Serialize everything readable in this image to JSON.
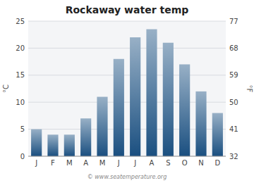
{
  "chart_data": {
    "type": "bar",
    "title": "Rockaway water temp",
    "categories": [
      "J",
      "F",
      "M",
      "A",
      "M",
      "J",
      "J",
      "A",
      "S",
      "O",
      "N",
      "D"
    ],
    "values": [
      5.0,
      4.0,
      4.0,
      7.0,
      11.0,
      18.0,
      22.0,
      23.5,
      21.0,
      17.0,
      12.0,
      8.0
    ],
    "color": "#1a4f80",
    "ylabel": "°C",
    "y2label": "°F",
    "ylim": [
      0,
      25
    ],
    "yticks": [
      0,
      5,
      10,
      15,
      20,
      25
    ],
    "y2lim": [
      32,
      77
    ],
    "y2ticks": [
      32,
      41,
      50,
      59,
      68,
      77
    ],
    "grid": true,
    "annotations": [
      "© www.seatemperature.org"
    ]
  }
}
